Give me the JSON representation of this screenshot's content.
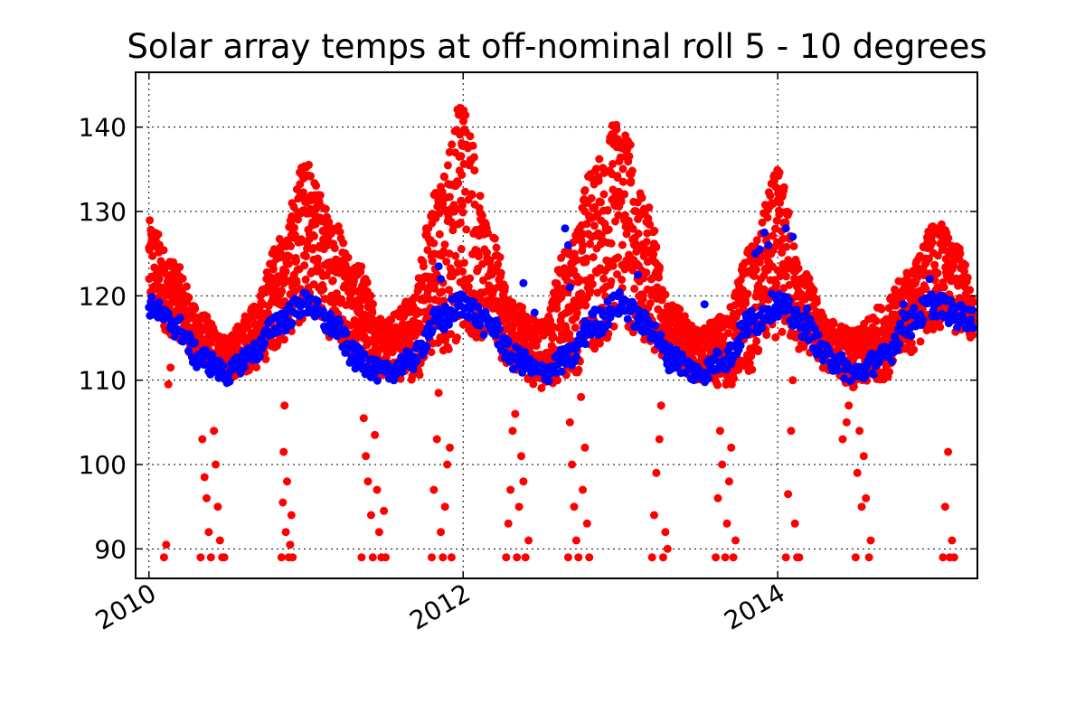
{
  "chart_data": {
    "type": "scatter",
    "title": "Solar array temps at off-nominal roll 5 - 10 degrees",
    "xlabel": "",
    "ylabel": "",
    "x_is_date": true,
    "xlim": [
      "2009-12-01",
      "2015-04-10"
    ],
    "ylim": [
      86.5,
      146.5
    ],
    "x_ticks": [
      {
        "label": "2010",
        "value": "2010-01-01"
      },
      {
        "label": "2012",
        "value": "2012-01-01"
      },
      {
        "label": "2014",
        "value": "2014-01-01"
      }
    ],
    "y_ticks": [
      90,
      100,
      110,
      120,
      130,
      140
    ],
    "grid": true,
    "legend": "none",
    "marker": "circle",
    "series": [
      {
        "color": "#ff0000",
        "role": "band",
        "x": [
          "2010-01-01",
          "2010-03-01",
          "2010-05-01",
          "2010-07-01",
          "2010-09-01",
          "2010-11-01",
          "2011-01-01",
          "2011-03-01",
          "2011-05-01",
          "2011-07-01",
          "2011-09-01",
          "2011-11-01",
          "2012-01-01",
          "2012-03-01",
          "2012-05-01",
          "2012-07-01",
          "2012-09-01",
          "2012-11-01",
          "2013-01-01",
          "2013-03-01",
          "2013-05-01",
          "2013-07-01",
          "2013-09-01",
          "2013-11-01",
          "2014-01-01",
          "2014-03-01",
          "2014-05-01",
          "2014-07-01",
          "2014-09-01",
          "2014-11-01",
          "2015-01-01",
          "2015-03-01",
          "2015-04-01"
        ],
        "y_low": [
          118,
          115,
          112,
          110,
          111,
          114,
          117,
          115,
          113,
          110,
          110,
          112,
          115,
          114,
          111,
          109,
          110,
          113,
          116,
          114,
          112,
          110,
          109,
          111,
          115,
          113,
          111,
          109,
          110,
          113,
          116,
          115,
          115
        ],
        "y_high": [
          129,
          124,
          118,
          115,
          119,
          127,
          136,
          130,
          124,
          117,
          120,
          133,
          144,
          128,
          119,
          117,
          126,
          136,
          142,
          131,
          119,
          116,
          118,
          126,
          135,
          123,
          117,
          116,
          119,
          123,
          129,
          126,
          120
        ]
      },
      {
        "color": "#ff0000",
        "role": "outliers",
        "x": [
          "2010-02-05",
          "2010-02-10",
          "2010-02-15",
          "2010-02-20",
          "2010-05-01",
          "2010-05-05",
          "2010-05-10",
          "2010-05-15",
          "2010-05-20",
          "2010-05-25",
          "2010-06-01",
          "2010-06-05",
          "2010-06-10",
          "2010-06-15",
          "2010-06-20",
          "2010-06-25",
          "2010-11-05",
          "2010-11-08",
          "2010-11-10",
          "2010-11-12",
          "2010-11-15",
          "2010-11-18",
          "2010-11-22",
          "2010-11-25",
          "2010-11-28",
          "2010-12-01",
          "2011-05-10",
          "2011-05-15",
          "2011-05-20",
          "2011-05-25",
          "2011-06-01",
          "2011-06-05",
          "2011-06-10",
          "2011-06-15",
          "2011-06-20",
          "2011-06-25",
          "2011-07-01",
          "2011-07-05",
          "2011-10-20",
          "2011-10-25",
          "2011-11-01",
          "2011-11-05",
          "2011-11-10",
          "2011-11-15",
          "2011-11-20",
          "2011-11-25",
          "2011-12-01",
          "2011-12-05",
          "2012-04-10",
          "2012-04-15",
          "2012-04-20",
          "2012-04-25",
          "2012-05-01",
          "2012-05-05",
          "2012-05-10",
          "2012-05-15",
          "2012-05-20",
          "2012-05-25",
          "2012-06-01",
          "2012-09-01",
          "2012-09-05",
          "2012-09-10",
          "2012-09-15",
          "2012-09-20",
          "2012-09-25",
          "2012-10-01",
          "2012-10-05",
          "2012-10-10",
          "2012-10-15",
          "2012-10-20",
          "2013-03-15",
          "2013-03-20",
          "2013-03-25",
          "2013-04-01",
          "2013-04-05",
          "2013-04-10",
          "2013-04-15",
          "2013-04-20",
          "2013-08-10",
          "2013-08-15",
          "2013-08-20",
          "2013-08-25",
          "2013-09-01",
          "2013-09-05",
          "2013-09-10",
          "2013-09-15",
          "2013-09-20",
          "2013-09-25",
          "2014-01-20",
          "2014-01-25",
          "2014-02-01",
          "2014-02-05",
          "2014-02-10",
          "2014-02-15",
          "2014-02-20",
          "2014-06-01",
          "2014-06-10",
          "2014-06-15",
          "2014-07-01",
          "2014-07-05",
          "2014-07-10",
          "2014-07-15",
          "2014-07-20",
          "2014-07-25",
          "2014-08-01",
          "2014-08-05",
          "2015-01-20",
          "2015-01-25",
          "2015-02-01",
          "2015-02-05",
          "2015-02-10",
          "2015-02-15"
        ],
        "y": [
          89,
          90.5,
          109.5,
          111.5,
          89,
          103,
          98.5,
          96,
          92,
          89,
          104,
          100,
          95,
          91,
          89,
          89,
          89,
          95.5,
          101.5,
          107,
          92,
          98,
          89,
          90.5,
          94,
          89,
          89,
          105.5,
          101,
          98,
          94,
          89,
          103.5,
          97,
          92,
          89,
          94.5,
          89,
          89,
          97,
          103,
          108.5,
          92,
          89,
          95,
          100,
          102,
          89,
          89,
          93,
          97,
          104,
          106,
          89,
          95,
          101,
          98,
          89,
          91,
          89,
          105,
          100,
          95,
          91,
          89,
          108,
          97,
          102,
          93,
          89,
          89,
          94,
          99,
          103,
          107,
          89,
          92,
          90,
          89,
          96,
          104,
          100,
          89,
          93,
          98,
          102,
          89,
          91,
          89,
          96.5,
          104,
          110,
          93,
          89,
          89,
          103,
          105,
          107,
          89,
          99,
          104,
          95,
          101,
          96,
          89,
          91,
          89,
          95,
          101.5,
          89,
          91,
          89
        ]
      },
      {
        "color": "#0000ff",
        "role": "band",
        "x": [
          "2010-01-01",
          "2010-03-01",
          "2010-05-01",
          "2010-07-01",
          "2010-09-01",
          "2010-11-01",
          "2011-01-01",
          "2011-03-01",
          "2011-05-01",
          "2011-07-01",
          "2011-09-01",
          "2011-11-01",
          "2012-01-01",
          "2012-03-01",
          "2012-05-01",
          "2012-07-01",
          "2012-09-01",
          "2012-11-01",
          "2013-01-01",
          "2013-03-01",
          "2013-05-01",
          "2013-07-01",
          "2013-09-01",
          "2013-11-01",
          "2014-01-01",
          "2014-03-01",
          "2014-05-01",
          "2014-07-01",
          "2014-09-01",
          "2014-11-01",
          "2015-01-01",
          "2015-03-01",
          "2015-04-01"
        ],
        "y_low": [
          117.5,
          115,
          111,
          109.5,
          112,
          115.5,
          117.5,
          115,
          111,
          109.5,
          111,
          115,
          117.5,
          115,
          111,
          109.5,
          111,
          115,
          117.5,
          115,
          111,
          109.5,
          111,
          115,
          117.5,
          115,
          111,
          109.5,
          111,
          115,
          117.5,
          116,
          116
        ],
        "y_high": [
          120,
          118,
          114,
          112,
          114.5,
          118.5,
          120.5,
          118,
          114,
          112,
          113.5,
          118.5,
          120.5,
          118,
          114,
          112,
          114,
          118.5,
          120.5,
          118,
          114,
          112,
          114,
          118.5,
          120.5,
          118,
          114,
          112,
          114,
          118.5,
          120.5,
          119,
          118.5
        ]
      },
      {
        "color": "#0000ff",
        "role": "outliers",
        "x": [
          "2011-11-05",
          "2011-11-10",
          "2012-08-25",
          "2012-09-01",
          "2012-09-05",
          "2013-02-10",
          "2013-07-15",
          "2013-10-20",
          "2013-11-10",
          "2013-11-20",
          "2013-12-01",
          "2013-12-10",
          "2014-01-20",
          "2014-02-05",
          "2014-03-10",
          "2014-10-20",
          "2014-12-20",
          "2012-05-20",
          "2012-06-15"
        ],
        "y": [
          123.5,
          122,
          128,
          126,
          121,
          122.5,
          119,
          117.5,
          125,
          125.5,
          127.5,
          126,
          128,
          127,
          118.5,
          119,
          122,
          121.5,
          118
        ]
      }
    ]
  }
}
